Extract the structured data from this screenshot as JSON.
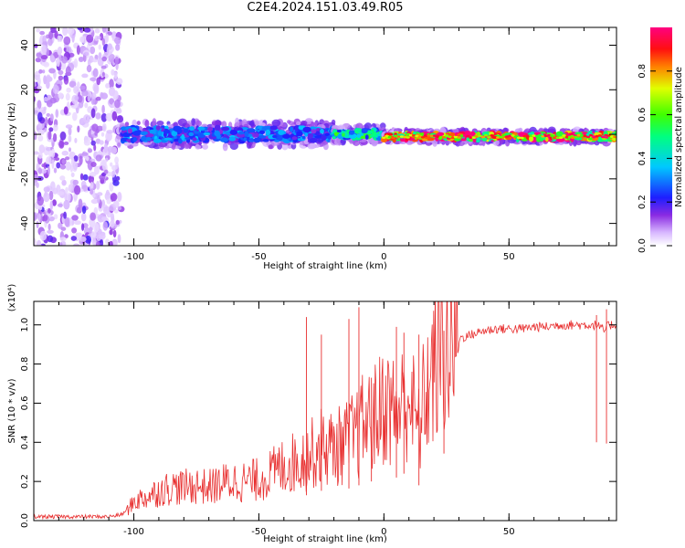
{
  "title": "C2E4.2024.151.03.49.R05",
  "chart_data": [
    {
      "type": "heatmap",
      "xlabel": "Height of straight line (km)",
      "ylabel": "Frequency (Hz)",
      "xlim": [
        -140,
        93
      ],
      "ylim": [
        -50,
        48
      ],
      "x_ticks": [
        -100,
        -50,
        0,
        50
      ],
      "x_tick_labels": [
        "-100",
        "-50",
        "0",
        "50"
      ],
      "y_ticks": [
        -40,
        -20,
        0,
        20,
        40
      ],
      "y_tick_labels": [
        "-40",
        "-20",
        "0",
        "20",
        "40"
      ],
      "colorbar": {
        "label": "Normalized spectral amplitude",
        "range": [
          0,
          1
        ],
        "ticks": [
          0.0,
          0.2,
          0.4,
          0.6,
          0.8
        ],
        "tick_labels": [
          "0.0",
          "0.2",
          "0.4",
          "0.6",
          "0.8"
        ],
        "colormap": "rainbow (white-violet-blue-cyan-green-yellow-red-magenta)"
      },
      "regions": [
        {
          "x_range": [
            -140,
            -105
          ],
          "freq_range": [
            -50,
            48
          ],
          "amplitude": 0.1,
          "description": "broadband noise"
        },
        {
          "x_range": [
            -105,
            -20
          ],
          "center_freq": 0,
          "spread_hz": 6,
          "amplitude": 0.3
        },
        {
          "x_range": [
            -20,
            0
          ],
          "center_freq": 0,
          "spread_hz": 4,
          "amplitude": 0.5
        },
        {
          "x_range": [
            0,
            93
          ],
          "center_freq": -1,
          "spread_hz": 3,
          "amplitude": 0.95
        }
      ]
    },
    {
      "type": "line",
      "xlabel": "Height of straight line (km)",
      "ylabel": "SNR (10 * v/v)",
      "y_multiplier": "(x10⁴)",
      "xlim": [
        -140,
        93
      ],
      "ylim": [
        0,
        1.12
      ],
      "x_ticks": [
        -100,
        -50,
        0,
        50
      ],
      "x_tick_labels": [
        "-100",
        "-50",
        "0",
        "50"
      ],
      "y_ticks": [
        0.0,
        0.2,
        0.4,
        0.6,
        0.8,
        1.0
      ],
      "y_tick_labels": [
        "0.0",
        "0.2",
        "0.4",
        "0.6",
        "0.8",
        "1.0"
      ],
      "series": [
        {
          "color": "#e83030",
          "x": [
            -140,
            -130,
            -120,
            -110,
            -105,
            -102,
            -100,
            -95,
            -90,
            -85,
            -80,
            -75,
            -70,
            -65,
            -60,
            -55,
            -50,
            -45,
            -40,
            -35,
            -30,
            -28,
            -25,
            -20,
            -15,
            -12,
            -10,
            -8,
            -5,
            -2,
            0,
            2,
            5,
            8,
            10,
            12,
            14,
            16,
            18,
            20,
            22,
            25,
            28,
            30,
            35,
            40,
            45,
            50,
            55,
            60,
            65,
            70,
            75,
            80,
            85,
            88,
            90,
            93
          ],
          "y": [
            0.02,
            0.02,
            0.02,
            0.02,
            0.03,
            0.06,
            0.1,
            0.12,
            0.15,
            0.17,
            0.17,
            0.18,
            0.17,
            0.19,
            0.2,
            0.2,
            0.21,
            0.24,
            0.28,
            0.3,
            0.33,
            0.35,
            0.38,
            0.37,
            0.4,
            0.43,
            0.45,
            0.5,
            0.5,
            0.55,
            0.6,
            0.58,
            0.55,
            0.6,
            0.66,
            0.55,
            0.45,
            0.62,
            0.7,
            0.77,
            0.83,
            0.87,
            0.9,
            0.93,
            0.95,
            0.97,
            0.98,
            0.98,
            0.98,
            0.99,
            0.99,
            1.0,
            1.0,
            1.0,
            1.0,
            0.97,
            1.0,
            1.0
          ]
        }
      ],
      "spikes": [
        {
          "x": -31,
          "y": 1.04
        },
        {
          "x": -25,
          "y": 0.95
        },
        {
          "x": -14,
          "y": 1.03
        },
        {
          "x": -10,
          "y": 1.09
        },
        {
          "x": -5,
          "y": 0.73
        },
        {
          "x": 5,
          "y": 0.99
        },
        {
          "x": 8,
          "y": 0.96
        },
        {
          "x": 14,
          "y": 0.95
        },
        {
          "x": 24,
          "y": 0.97
        },
        {
          "x": 85,
          "y": 1.05
        },
        {
          "x": 89,
          "y": 1.08
        }
      ]
    }
  ]
}
